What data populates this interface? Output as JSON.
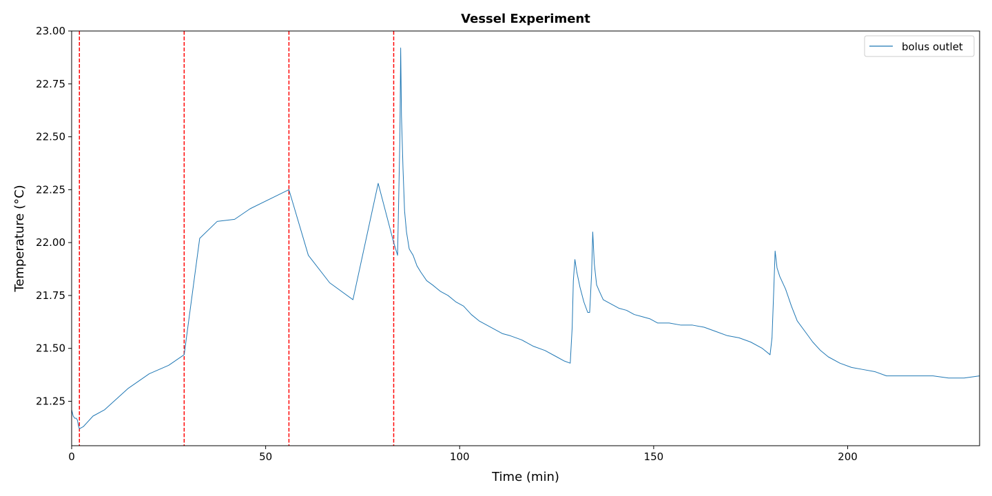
{
  "chart_data": {
    "type": "line",
    "title": "Vessel Experiment",
    "xlabel": "Time (min)",
    "ylabel": "Temperature (°C)",
    "xlim": [
      0,
      234
    ],
    "ylim": [
      21.04,
      23.0
    ],
    "xticks": [
      0,
      50,
      100,
      150,
      200
    ],
    "xtick_labels": [
      "0",
      "50",
      "100",
      "150",
      "200"
    ],
    "yticks": [
      21.25,
      21.5,
      21.75,
      22.0,
      22.25,
      22.5,
      22.75,
      23.0
    ],
    "ytick_labels": [
      "21.25",
      "21.50",
      "21.75",
      "22.00",
      "22.25",
      "22.50",
      "22.75",
      "23.00"
    ],
    "grid": false,
    "legend": {
      "position": "top-right"
    },
    "series": [
      {
        "name": "bolus outlet",
        "color": "#1f77b4",
        "points": [
          [
            0,
            21.21
          ],
          [
            0.4,
            21.18
          ],
          [
            0.8,
            21.17
          ],
          [
            1.2,
            21.17
          ],
          [
            1.5,
            21.16
          ],
          [
            1.8,
            21.13
          ],
          [
            2.0,
            21.12
          ],
          [
            3.0,
            21.13
          ],
          [
            5.5,
            21.18
          ],
          [
            8.5,
            21.21
          ],
          [
            14.5,
            21.31
          ],
          [
            20.0,
            21.38
          ],
          [
            25.0,
            21.42
          ],
          [
            29.0,
            21.47
          ],
          [
            33.0,
            22.02
          ],
          [
            37.5,
            22.1
          ],
          [
            42.0,
            22.11
          ],
          [
            46.0,
            22.16
          ],
          [
            56.0,
            22.25
          ],
          [
            61.0,
            21.94
          ],
          [
            66.5,
            21.81
          ],
          [
            72.5,
            21.73
          ],
          [
            79.0,
            22.28
          ],
          [
            83.0,
            22.0
          ],
          [
            84.0,
            21.94
          ],
          [
            84.6,
            22.5
          ],
          [
            84.8,
            22.92
          ],
          [
            85.0,
            22.6
          ],
          [
            85.4,
            22.35
          ],
          [
            85.8,
            22.15
          ],
          [
            86.3,
            22.05
          ],
          [
            87.0,
            21.97
          ],
          [
            88.0,
            21.94
          ],
          [
            89.0,
            21.89
          ],
          [
            90.0,
            21.86
          ],
          [
            91.5,
            21.82
          ],
          [
            93.0,
            21.8
          ],
          [
            95.0,
            21.77
          ],
          [
            97.0,
            21.75
          ],
          [
            99.0,
            21.72
          ],
          [
            101.0,
            21.7
          ],
          [
            103.0,
            21.66
          ],
          [
            105.0,
            21.63
          ],
          [
            107.0,
            21.61
          ],
          [
            109.0,
            21.59
          ],
          [
            111.0,
            21.57
          ],
          [
            113.0,
            21.56
          ],
          [
            116.0,
            21.54
          ],
          [
            119.0,
            21.51
          ],
          [
            122.0,
            21.49
          ],
          [
            125.0,
            21.46
          ],
          [
            127.0,
            21.44
          ],
          [
            128.5,
            21.43
          ],
          [
            129.0,
            21.6
          ],
          [
            129.3,
            21.82
          ],
          [
            129.7,
            21.92
          ],
          [
            130.2,
            21.86
          ],
          [
            131.0,
            21.79
          ],
          [
            132.0,
            21.72
          ],
          [
            133.0,
            21.67
          ],
          [
            133.5,
            21.67
          ],
          [
            134.0,
            21.85
          ],
          [
            134.3,
            22.05
          ],
          [
            134.7,
            21.9
          ],
          [
            135.3,
            21.8
          ],
          [
            136.0,
            21.77
          ],
          [
            137.0,
            21.73
          ],
          [
            139.0,
            21.71
          ],
          [
            141.0,
            21.69
          ],
          [
            143.0,
            21.68
          ],
          [
            145.0,
            21.66
          ],
          [
            147.0,
            21.65
          ],
          [
            149.0,
            21.64
          ],
          [
            151.0,
            21.62
          ],
          [
            154.0,
            21.62
          ],
          [
            157.0,
            21.61
          ],
          [
            160.0,
            21.61
          ],
          [
            163.0,
            21.6
          ],
          [
            166.0,
            21.58
          ],
          [
            169.0,
            21.56
          ],
          [
            172.0,
            21.55
          ],
          [
            175.0,
            21.53
          ],
          [
            178.0,
            21.5
          ],
          [
            180.0,
            21.47
          ],
          [
            180.5,
            21.55
          ],
          [
            181.0,
            21.8
          ],
          [
            181.3,
            21.96
          ],
          [
            181.8,
            21.88
          ],
          [
            182.5,
            21.84
          ],
          [
            184.0,
            21.78
          ],
          [
            185.5,
            21.7
          ],
          [
            187.0,
            21.63
          ],
          [
            189.0,
            21.58
          ],
          [
            191.0,
            21.53
          ],
          [
            193.0,
            21.49
          ],
          [
            195.0,
            21.46
          ],
          [
            198.0,
            21.43
          ],
          [
            201.0,
            21.41
          ],
          [
            204.0,
            21.4
          ],
          [
            207.0,
            21.39
          ],
          [
            210.0,
            21.37
          ],
          [
            214.0,
            21.37
          ],
          [
            218.0,
            21.37
          ],
          [
            222.0,
            21.37
          ],
          [
            226.0,
            21.36
          ],
          [
            230.0,
            21.36
          ],
          [
            234.0,
            21.37
          ]
        ]
      }
    ],
    "vlines": [
      {
        "x": 2,
        "color": "#ff0000",
        "style": "dashed"
      },
      {
        "x": 29,
        "color": "#ff0000",
        "style": "dashed"
      },
      {
        "x": 56,
        "color": "#ff0000",
        "style": "dashed"
      },
      {
        "x": 83,
        "color": "#ff0000",
        "style": "dashed"
      }
    ]
  }
}
